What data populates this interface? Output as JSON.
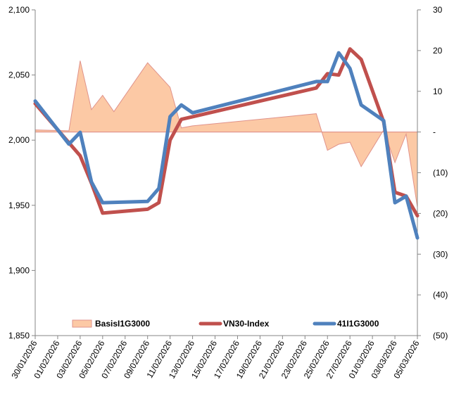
{
  "chart_data": {
    "type": "line",
    "dates": [
      "30/01/2026",
      "31/01/2026",
      "01/02/2026",
      "02/02/2026",
      "03/02/2026",
      "04/02/2026",
      "05/02/2026",
      "06/02/2026",
      "07/02/2026",
      "08/02/2026",
      "09/02/2026",
      "10/02/2026",
      "11/02/2026",
      "12/02/2026",
      "13/02/2026",
      "14/02/2026",
      "15/02/2026",
      "16/02/2026",
      "17/02/2026",
      "18/02/2026",
      "19/02/2026",
      "20/02/2026",
      "21/02/2026",
      "22/02/2026",
      "23/02/2026",
      "24/02/2026",
      "25/02/2026",
      "26/02/2026",
      "27/02/2026",
      "28/02/2026",
      "01/03/2026",
      "02/03/2026",
      "03/03/2026",
      "04/03/2026",
      "05/03/2026"
    ],
    "x_tick_labels": [
      "30/01/2026",
      "01/02/2026",
      "03/02/2026",
      "05/02/2026",
      "07/02/2026",
      "09/02/2026",
      "11/02/2026",
      "13/02/2026",
      "15/02/2026",
      "17/02/2026",
      "19/02/2026",
      "21/02/2026",
      "23/02/2026",
      "25/02/2026",
      "27/02/2026",
      "01/03/2026",
      "03/03/2026",
      "05/03/2026"
    ],
    "y_left": {
      "min": 1850,
      "max": 2100,
      "ticks": [
        "1,850",
        "1,900",
        "1,950",
        "2,000",
        "2,050",
        "2,100"
      ]
    },
    "y_right": {
      "min": -50,
      "max": 30,
      "ticks": [
        "(50)",
        "(40)",
        "(30)",
        "(20)",
        "(10)",
        "-",
        "10",
        "20",
        "30"
      ]
    },
    "series": [
      {
        "name": "BasisI1G3000",
        "axis": "right",
        "style": "area",
        "color": "#fcc9a5",
        "edge_color": "#e0938b",
        "x": [
          "30/01/2026",
          "02/02/2026",
          "03/02/2026",
          "04/02/2026",
          "05/02/2026",
          "06/02/2026",
          "09/02/2026",
          "11/02/2026",
          "12/02/2026",
          "13/02/2026",
          "24/02/2026",
          "25/02/2026",
          "26/02/2026",
          "27/02/2026",
          "28/02/2026",
          "02/03/2026",
          "03/03/2026",
          "04/03/2026",
          "05/03/2026"
        ],
        "values": [
          0.5,
          0.3,
          17.5,
          5.5,
          9,
          5,
          17,
          11,
          1,
          1.5,
          4.5,
          -4.5,
          -3,
          -2.5,
          -8.5,
          0.5,
          -7.5,
          -0.5,
          -18.5
        ]
      },
      {
        "name": "VN30-Index",
        "axis": "left",
        "style": "line",
        "color": "#c0504d",
        "x": [
          "30/01/2026",
          "02/02/2026",
          "03/02/2026",
          "04/02/2026",
          "05/02/2026",
          "09/02/2026",
          "10/02/2026",
          "11/02/2026",
          "12/02/2026",
          "13/02/2026",
          "24/02/2026",
          "25/02/2026",
          "26/02/2026",
          "27/02/2026",
          "28/02/2026",
          "02/03/2026",
          "03/03/2026",
          "04/03/2026",
          "05/03/2026"
        ],
        "values": [
          2028,
          1998,
          1988,
          1967,
          1944,
          1947,
          1952,
          2000,
          2016,
          2018,
          2040,
          2051,
          2050,
          2070,
          2062,
          2014,
          1960,
          1957,
          1942
        ]
      },
      {
        "name": "41I1G3000",
        "axis": "left",
        "style": "line",
        "color": "#4f81bd",
        "x": [
          "30/01/2026",
          "02/02/2026",
          "03/02/2026",
          "04/02/2026",
          "05/02/2026",
          "09/02/2026",
          "10/02/2026",
          "11/02/2026",
          "12/02/2026",
          "13/02/2026",
          "24/02/2026",
          "25/02/2026",
          "26/02/2026",
          "27/02/2026",
          "28/02/2026",
          "02/03/2026",
          "03/03/2026",
          "04/03/2026",
          "05/03/2026"
        ],
        "values": [
          2030,
          1997,
          2006,
          1968,
          1952,
          1953,
          1963,
          2018,
          2027,
          2021,
          2045,
          2045,
          2067,
          2055,
          2027,
          2015,
          1952,
          1957,
          1925
        ]
      }
    ],
    "legend_position": "bottom-inside",
    "grid": false
  }
}
